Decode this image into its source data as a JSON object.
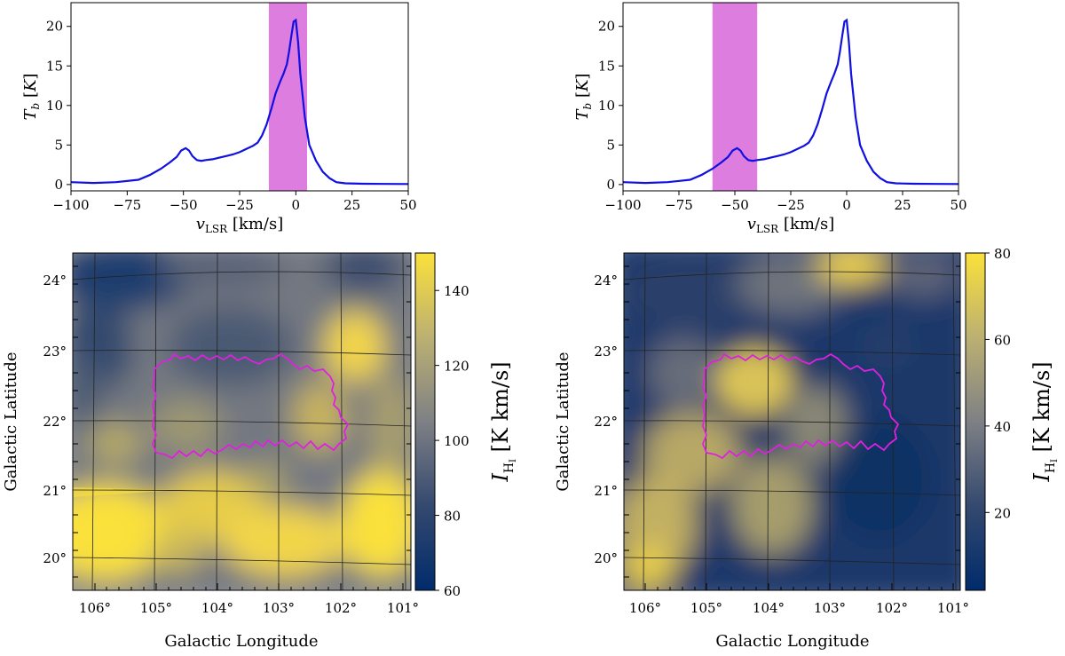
{
  "colors": {
    "spectrum_line": "#1010e0",
    "band": "#dd7de0",
    "contour": "#e020e0",
    "cmap_low": "#002b6b",
    "cmap_mid": "#7e8085",
    "cmap_high": "#fbe13a"
  },
  "chart_data": [
    {
      "type": "line",
      "panel": "top-left",
      "x": [
        -100,
        -90,
        -80,
        -70,
        -65,
        -60,
        -56,
        -53,
        -51,
        -49,
        -47.5,
        -46,
        -44,
        -42,
        -40,
        -37,
        -34,
        -31,
        -28,
        -25,
        -22,
        -19,
        -17,
        -15,
        -13,
        -11,
        -9,
        -7,
        -5.5,
        -4,
        -3,
        -2,
        -1,
        0,
        1,
        2,
        4,
        6,
        9,
        12,
        15,
        18,
        22,
        30,
        40,
        50
      ],
      "y": [
        0.3,
        0.2,
        0.3,
        0.6,
        1.2,
        2.0,
        2.8,
        3.5,
        4.3,
        4.6,
        4.3,
        3.6,
        3.1,
        3.0,
        3.1,
        3.2,
        3.4,
        3.6,
        3.8,
        4.1,
        4.5,
        4.9,
        5.3,
        6.2,
        7.6,
        9.5,
        11.5,
        13.0,
        14.0,
        15.2,
        16.8,
        18.8,
        20.6,
        20.8,
        18.0,
        14.0,
        8.5,
        5.0,
        3.0,
        1.6,
        0.8,
        0.3,
        0.15,
        0.1,
        0.08,
        0.06
      ],
      "band": [
        -12,
        5
      ],
      "xlabel": "v_LSR [km/s]",
      "ylabel": "T_b [K]",
      "xlim": [
        -100,
        50
      ],
      "ylim": [
        -0.8,
        23
      ],
      "xticks": [
        -100,
        -75,
        -50,
        -25,
        0,
        25,
        50
      ],
      "yticks": [
        0,
        5,
        10,
        15,
        20
      ]
    },
    {
      "type": "line",
      "panel": "top-right",
      "x": [
        -100,
        -90,
        -80,
        -70,
        -65,
        -60,
        -56,
        -53,
        -51,
        -49,
        -47.5,
        -46,
        -44,
        -42,
        -40,
        -37,
        -34,
        -31,
        -28,
        -25,
        -22,
        -19,
        -17,
        -15,
        -13,
        -11,
        -9,
        -7,
        -5.5,
        -4,
        -3,
        -2,
        -1,
        0,
        1,
        2,
        4,
        6,
        9,
        12,
        15,
        18,
        22,
        30,
        40,
        50
      ],
      "y": [
        0.3,
        0.2,
        0.3,
        0.6,
        1.2,
        2.0,
        2.8,
        3.5,
        4.3,
        4.6,
        4.3,
        3.6,
        3.1,
        3.0,
        3.1,
        3.2,
        3.4,
        3.6,
        3.8,
        4.1,
        4.5,
        4.9,
        5.3,
        6.2,
        7.6,
        9.5,
        11.5,
        13.0,
        14.0,
        15.2,
        16.8,
        18.8,
        20.6,
        20.8,
        18.0,
        14.0,
        8.5,
        5.0,
        3.0,
        1.6,
        0.8,
        0.3,
        0.15,
        0.1,
        0.08,
        0.06
      ],
      "band": [
        -60,
        -40
      ],
      "xlabel": "v_LSR [km/s]",
      "ylabel": "T_b [K]",
      "xlim": [
        -100,
        50
      ],
      "ylim": [
        -0.8,
        23
      ],
      "xticks": [
        -100,
        -75,
        -50,
        -25,
        0,
        25,
        50
      ],
      "yticks": [
        0,
        5,
        10,
        15,
        20
      ]
    },
    {
      "type": "heatmap",
      "panel": "bottom-left",
      "xlabel": "Galactic Longitude",
      "ylabel": "Galactic Latitude",
      "lon_range": [
        106.3,
        100.9
      ],
      "lat_range": [
        19.5,
        24.5
      ],
      "lon_ticks": [
        "106°",
        "105°",
        "104°",
        "103°",
        "102°",
        "101°"
      ],
      "lat_ticks": [
        "20°",
        "21°",
        "22°",
        "23°",
        "24°"
      ],
      "colorbar": {
        "min": 60,
        "max": 150,
        "ticks": [
          60,
          80,
          100,
          120,
          140
        ],
        "label": "I_HI [K km/s]"
      },
      "region_outline_color": "magenta"
    },
    {
      "type": "heatmap",
      "panel": "bottom-right",
      "xlabel": "Galactic Longitude",
      "ylabel": "Galactic Latitude",
      "lon_range": [
        106.3,
        100.9
      ],
      "lat_range": [
        19.5,
        24.5
      ],
      "lon_ticks": [
        "106°",
        "105°",
        "104°",
        "103°",
        "102°",
        "101°"
      ],
      "lat_ticks": [
        "20°",
        "21°",
        "22°",
        "23°",
        "24°"
      ],
      "colorbar": {
        "min": 2,
        "max": 80,
        "ticks": [
          20,
          40,
          60,
          80
        ],
        "label": "I_HI [K km/s]"
      },
      "region_outline_color": "magenta"
    }
  ]
}
